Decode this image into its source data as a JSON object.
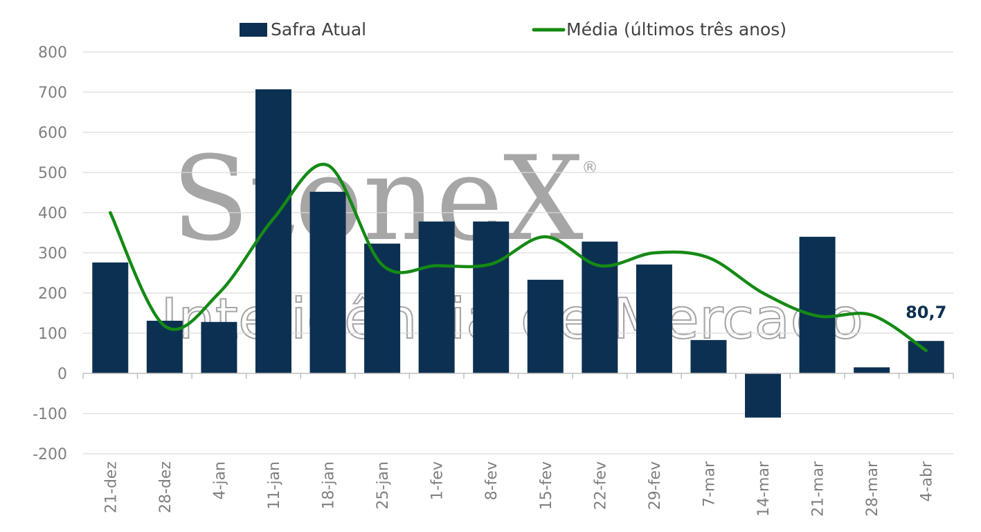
{
  "watermark": {
    "brand": "StoneX",
    "registered": "®",
    "tagline": "Inteligência de Mercado"
  },
  "legend": {
    "bar_label": "Safra Atual",
    "line_label": "Média (últimos três anos)",
    "placement": "top-center"
  },
  "colors": {
    "bar": "#0c3052",
    "line": "#158a15",
    "grid": "#d9d9d9",
    "tick_text": "#7f7f7f"
  },
  "chart_data": {
    "type": "bar",
    "title": "",
    "xlabel": "",
    "ylabel": "",
    "ylim": [
      -200,
      800
    ],
    "yticks": [
      800,
      700,
      600,
      500,
      400,
      300,
      200,
      100,
      0,
      -100,
      -200
    ],
    "grid": true,
    "categories": [
      "21-dez",
      "28-dez",
      "4-jan",
      "11-jan",
      "18-jan",
      "25-jan",
      "1-fev",
      "8-fev",
      "15-fev",
      "22-fev",
      "29-fev",
      "7-mar",
      "14-mar",
      "21-mar",
      "28-mar",
      "4-abr"
    ],
    "series": [
      {
        "name": "Safra Atual",
        "type": "bar",
        "values": [
          276,
          131,
          128,
          707,
          452,
          323,
          378,
          378,
          233,
          328,
          271,
          83,
          -110,
          340,
          15,
          80.7
        ]
      },
      {
        "name": "Média (últimos três anos)",
        "type": "line",
        "smooth": true,
        "values": [
          400,
          118,
          200,
          385,
          518,
          270,
          268,
          272,
          340,
          268,
          300,
          288,
          200,
          143,
          145,
          57
        ]
      }
    ],
    "annotations": [
      {
        "category": "4-abr",
        "text": "80,7"
      }
    ]
  }
}
